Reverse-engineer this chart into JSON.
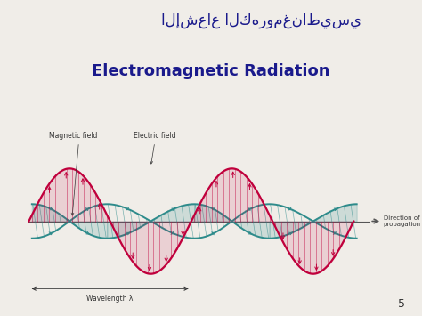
{
  "arabic_title": "الإشعاع الكهرومغناطيسي",
  "english_title": "Electromagnetic Radiation",
  "title_color": "#1a1a8c",
  "background_color": "#f0ede8",
  "electric_color": "#c0003c",
  "magnetic_color": "#2e8b8b",
  "axis_color": "#555555",
  "label_color": "#333333",
  "page_number": "5",
  "magnetic_field_label": "Magnetic field",
  "electric_field_label": "Electric field",
  "direction_label": "Direction of\npropagation",
  "wavelength_label": "Wavelength λ"
}
